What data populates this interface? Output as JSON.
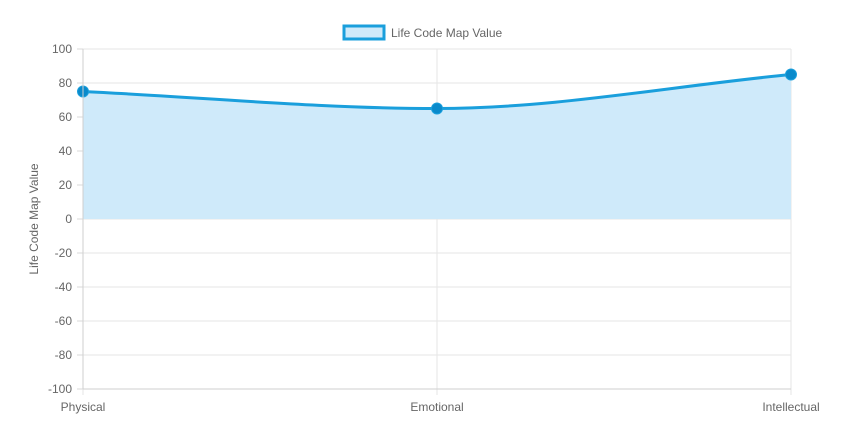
{
  "chart_data": {
    "type": "area",
    "title": "",
    "xlabel": "",
    "ylabel": "Life Code Map Value",
    "categories": [
      "Physical",
      "Emotional",
      "Intellectual"
    ],
    "series": [
      {
        "name": "Life Code Map Value",
        "values": [
          75,
          65,
          85
        ],
        "line_color": "#1a9fdc",
        "fill_color": "#cfeafa",
        "point_color": "#0a8acb"
      }
    ],
    "ylim": [
      -100,
      100
    ],
    "yticks": [
      100,
      80,
      60,
      40,
      20,
      0,
      -20,
      -40,
      -60,
      -80,
      -100
    ],
    "grid": true,
    "legend_position": "top-center"
  }
}
